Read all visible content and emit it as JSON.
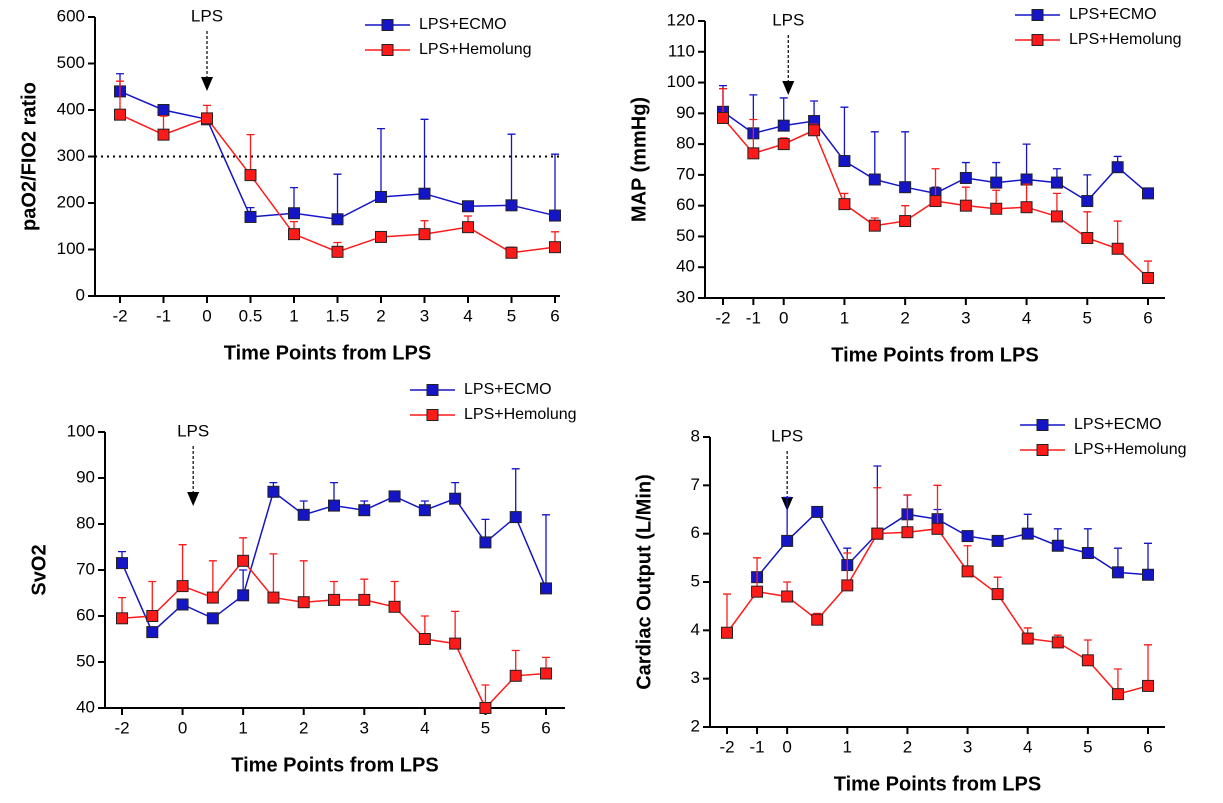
{
  "chart_data": [
    {
      "type": "line",
      "xlabel": "Time Points from LPS",
      "ylabel": "paO2/FIO2 ratio",
      "annotation": "LPS",
      "hline": 300,
      "categories": [
        "-2",
        "-1",
        "0",
        "0.5",
        "1",
        "1.5",
        "2",
        "3",
        "4",
        "5",
        "6"
      ],
      "ylim": [
        0,
        600
      ],
      "yticks": [
        0,
        100,
        200,
        300,
        400,
        500,
        600
      ],
      "series": [
        {
          "name": "LPS+ECMO",
          "color": "#1515c8",
          "values": [
            440,
            400,
            380,
            170,
            178,
            165,
            213,
            220,
            193,
            195,
            173
          ],
          "errors": [
            38,
            5,
            5,
            20,
            55,
            97,
            147,
            160,
            10,
            153,
            132
          ]
        },
        {
          "name": "LPS+Hemolung",
          "color": "#ff1a1a",
          "values": [
            390,
            347,
            382,
            260,
            133,
            95,
            127,
            133,
            148,
            93,
            105
          ],
          "errors": [
            72,
            40,
            28,
            87,
            27,
            20,
            8,
            29,
            24,
            12,
            33
          ]
        }
      ]
    },
    {
      "type": "line",
      "xlabel": "Time Points from LPS",
      "ylabel": "MAP (mmHg)",
      "annotation": "LPS",
      "categories": [
        "-2",
        "-1",
        "0",
        null,
        "1",
        null,
        "2",
        null,
        "3",
        null,
        "4",
        null,
        "5",
        null,
        "6"
      ],
      "ylim": [
        30,
        120
      ],
      "yticks": [
        30,
        40,
        50,
        60,
        70,
        80,
        90,
        100,
        110,
        120
      ],
      "series": [
        {
          "name": "LPS+ECMO",
          "color": "#1515c8",
          "values": [
            90.5,
            83.5,
            86,
            87.5,
            74.5,
            68.5,
            66,
            64,
            69,
            67.5,
            68.5,
            67.5,
            61.5,
            72.5,
            64
          ],
          "errors": [
            8.5,
            12.5,
            9,
            6.5,
            17.5,
            15.5,
            18,
            2,
            5,
            6.5,
            11.5,
            4.5,
            8.5,
            3.5,
            1
          ]
        },
        {
          "name": "LPS+Hemolung",
          "color": "#ff1a1a",
          "values": [
            88.5,
            77,
            80,
            84.5,
            60.5,
            53.5,
            55,
            61.5,
            60,
            59,
            59.5,
            56.5,
            49.5,
            46,
            36.5
          ],
          "errors": [
            9.5,
            11,
            2,
            2,
            3.5,
            2.5,
            5,
            10.5,
            6,
            6,
            7.5,
            7.5,
            8.5,
            9,
            5.5
          ]
        }
      ]
    },
    {
      "type": "line",
      "xlabel": "Time Points from LPS",
      "ylabel": "SvO2",
      "annotation": "LPS",
      "categories": [
        "-2",
        null,
        "0",
        null,
        "1",
        null,
        "2",
        null,
        "3",
        null,
        "4",
        null,
        "5",
        null,
        "6"
      ],
      "ylim": [
        40,
        100
      ],
      "yticks": [
        40,
        50,
        60,
        70,
        80,
        90,
        100
      ],
      "series": [
        {
          "name": "LPS+ECMO",
          "color": "#1515c8",
          "values": [
            71.5,
            56.5,
            62.5,
            59.5,
            64.5,
            87,
            82,
            84,
            83,
            86,
            83,
            85.5,
            76,
            81.5,
            66
          ],
          "errors": [
            2.5,
            1,
            0.5,
            0.5,
            5.5,
            2,
            3,
            5,
            2,
            0.5,
            2,
            3.5,
            5,
            10.5,
            16
          ]
        },
        {
          "name": "LPS+Hemolung",
          "color": "#ff1a1a",
          "values": [
            59.5,
            60,
            66.5,
            64,
            72,
            64,
            63,
            63.5,
            63.5,
            62,
            55,
            54,
            40,
            47,
            47.5
          ],
          "errors": [
            4.5,
            7.5,
            9,
            8,
            5,
            9.5,
            9,
            4,
            4.5,
            5.5,
            5,
            7,
            5,
            5.5,
            3.5
          ]
        }
      ]
    },
    {
      "type": "line",
      "xlabel": "Time Points from LPS",
      "ylabel": "Cardiac Output (L/Min)",
      "annotation": "LPS",
      "categories": [
        "-2",
        "-1",
        "0",
        null,
        "1",
        null,
        "2",
        null,
        "3",
        null,
        "4",
        null,
        "5",
        null,
        "6"
      ],
      "ylim": [
        2,
        8
      ],
      "yticks": [
        2,
        3,
        4,
        5,
        6,
        7,
        8
      ],
      "series": [
        {
          "name": "LPS+ECMO",
          "color": "#1515c8",
          "values": [
            null,
            5.1,
            5.85,
            6.45,
            5.35,
            6.0,
            6.4,
            6.3,
            5.95,
            5.85,
            6.0,
            5.75,
            5.6,
            5.2,
            5.15
          ],
          "errors": [
            null,
            0.1,
            0.9,
            0.05,
            0.35,
            1.4,
            0.4,
            0.2,
            0.05,
            0.05,
            0.4,
            0.35,
            0.5,
            0.5,
            0.65
          ]
        },
        {
          "name": "LPS+Hemolung",
          "color": "#ff1a1a",
          "values": [
            3.95,
            4.8,
            4.7,
            4.22,
            4.93,
            6.0,
            6.03,
            6.1,
            5.22,
            4.75,
            3.83,
            3.75,
            3.38,
            2.68,
            2.85
          ],
          "errors": [
            0.8,
            0.7,
            0.3,
            0.13,
            0.67,
            0.95,
            0.77,
            0.9,
            0.53,
            0.35,
            0.22,
            0.15,
            0.42,
            0.52,
            0.85
          ]
        }
      ]
    }
  ]
}
